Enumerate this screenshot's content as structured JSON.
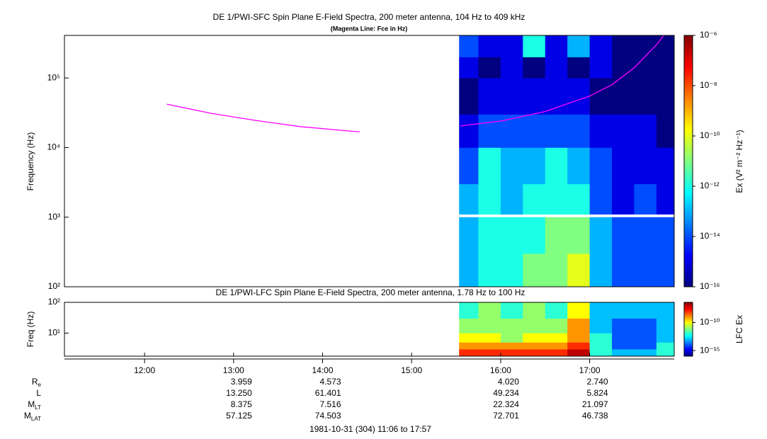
{
  "chart_data": [
    {
      "type": "heatmap",
      "title": "DE 1/PWI-SFC  Spin Plane E-Field Spectra, 200 meter antenna, 104 Hz to 409 kHz",
      "subtitle": "(Magenta Line: Fce in Hz)",
      "ylabel": "Frequency (Hz)",
      "zlabel": "Ex (V² m⁻² Hz⁻¹)",
      "log_y": true,
      "log_z": true,
      "colormap": "jet",
      "xlim": [
        "11:06",
        "17:57"
      ],
      "ylim": [
        100,
        409000
      ],
      "yticks": [
        {
          "value": 100,
          "label": "10²"
        },
        {
          "value": 1000,
          "label": "10³"
        },
        {
          "value": 10000,
          "label": "10⁴"
        },
        {
          "value": 100000,
          "label": "10⁵"
        }
      ],
      "zlim": [
        1e-16,
        1e-06
      ],
      "zticks": [
        {
          "value": 1e-16,
          "label": "10⁻¹⁶"
        },
        {
          "value": 1e-14,
          "label": "10⁻¹⁴"
        },
        {
          "value": 1e-12,
          "label": "10⁻¹²"
        },
        {
          "value": 1e-10,
          "label": "10⁻¹⁰"
        },
        {
          "value": 1e-08,
          "label": "10⁻⁸"
        },
        {
          "value": 1e-06,
          "label": "10⁻⁶"
        }
      ],
      "x_edges": [
        "15:32",
        "15:45",
        "16:00",
        "16:15",
        "16:30",
        "16:45",
        "17:00",
        "17:15",
        "17:30",
        "17:45",
        "17:57"
      ],
      "y_edges": [
        100,
        300,
        1000,
        1100,
        3000,
        10000,
        30000,
        100000,
        200000,
        409000
      ],
      "z": [
        [
          1e-13,
          1e-12,
          1e-12,
          1e-11,
          1e-11,
          1e-10,
          1e-13,
          1e-14,
          1e-14,
          1e-14
        ],
        [
          1e-13,
          1e-12,
          1e-12,
          1e-12,
          1e-11,
          1e-11,
          1e-13,
          1e-14,
          1e-14,
          1e-14
        ],
        [
          null,
          null,
          null,
          null,
          null,
          null,
          null,
          null,
          null,
          null
        ],
        [
          1e-13,
          1e-12,
          1e-13,
          1e-12,
          1e-12,
          1e-12,
          1e-14,
          1e-15,
          1e-14,
          1e-15
        ],
        [
          1e-14,
          1e-12,
          1e-13,
          1e-13,
          1e-12,
          1e-13,
          1e-14,
          1e-15,
          1e-15,
          1e-15
        ],
        [
          1e-15,
          1e-14,
          1e-14,
          1e-14,
          1e-14,
          1e-14,
          1e-15,
          1e-15,
          1e-15,
          1e-16
        ],
        [
          1e-16,
          1e-15,
          1e-15,
          1e-15,
          1e-15,
          1e-15,
          1e-16,
          1e-16,
          1e-16,
          1e-16
        ],
        [
          1e-15,
          1e-16,
          1e-15,
          1e-16,
          1e-15,
          1e-16,
          1e-15,
          1e-16,
          1e-16,
          1e-16
        ],
        [
          1e-14,
          1e-15,
          1e-15,
          1e-12,
          1e-15,
          1e-13,
          1e-15,
          1e-16,
          1e-16,
          1e-16
        ]
      ],
      "lines": [
        {
          "color": "#ff00ff",
          "x": [
            "12:15",
            "12:45",
            "13:15",
            "13:45",
            "14:15",
            "14:25",
            "15:00",
            "15:33",
            "16:00",
            "16:30",
            "17:00",
            "17:15",
            "17:30",
            "17:45",
            "17:50"
          ],
          "values": [
            42000,
            31000,
            24500,
            20000,
            17500,
            16800,
            null,
            20500,
            24000,
            33000,
            55000,
            80000,
            140000,
            300000,
            409000
          ]
        }
      ]
    },
    {
      "type": "heatmap",
      "title": "DE 1/PWI-LFC  Spin Plane E-Field Spectra, 200 meter antenna, 1.78 Hz to 100 Hz",
      "ylabel": "Freq (Hz)",
      "zlabel": "LFC Ex",
      "log_y": true,
      "log_z": true,
      "colormap": "jet",
      "xlim": [
        "11:06",
        "17:57"
      ],
      "xticks": [
        "12:00",
        "13:00",
        "14:00",
        "15:00",
        "16:00",
        "17:00"
      ],
      "ylim": [
        1.78,
        100
      ],
      "yticks": [
        {
          "value": 10,
          "label": "10¹"
        },
        {
          "value": 100,
          "label": "10²"
        }
      ],
      "zlim": [
        1e-16,
        4e-07
      ],
      "zticks": [
        {
          "value": 1e-15,
          "label": "10⁻¹⁵"
        },
        {
          "value": 1e-10,
          "label": "10⁻¹⁰"
        }
      ],
      "x_edges": [
        "15:32",
        "15:45",
        "16:00",
        "16:15",
        "16:30",
        "16:45",
        "17:00",
        "17:15",
        "17:30",
        "17:45",
        "17:57"
      ],
      "y_edges": [
        1.78,
        3,
        5,
        10,
        30,
        100
      ],
      "z": [
        [
          1e-08,
          1e-08,
          1e-08,
          1e-08,
          1e-08,
          1e-07,
          1e-12,
          1e-13,
          1e-13,
          1e-12
        ],
        [
          1e-09,
          1e-09,
          1e-09,
          1e-09,
          1e-09,
          1e-08,
          1e-12,
          1e-14,
          1e-14,
          1e-12
        ],
        [
          1e-10,
          1e-10,
          1e-11,
          1e-10,
          1e-10,
          1e-09,
          1e-12,
          1e-14,
          1e-14,
          1e-13
        ],
        [
          1e-11,
          1e-11,
          1e-11,
          1e-11,
          1e-11,
          1e-09,
          1e-13,
          1e-14,
          1e-14,
          1e-13
        ],
        [
          1e-12,
          1e-11,
          1e-12,
          1e-11,
          1e-12,
          1e-10,
          1e-13,
          1e-13,
          1e-13,
          1e-13
        ]
      ]
    }
  ],
  "ephemeris": {
    "labels": [
      {
        "main": "R",
        "sub": "e"
      },
      {
        "main": "L"
      },
      {
        "main": "M",
        "sub": "LT"
      },
      {
        "main": "M",
        "sub": "LAT"
      }
    ],
    "times": [
      "13:00",
      "14:00",
      "16:00",
      "17:00"
    ],
    "rows": [
      [
        "3.959",
        "4.573",
        "4.020",
        "2.740"
      ],
      [
        "13.250",
        "61.401",
        "49.234",
        "5.824"
      ],
      [
        "8.375",
        "7.516",
        "22.324",
        "21.097"
      ],
      [
        "57.125",
        "74.503",
        "72.701",
        "46.738"
      ]
    ],
    "footer": "1981-10-31 (304) 11:06 to 17:57"
  }
}
